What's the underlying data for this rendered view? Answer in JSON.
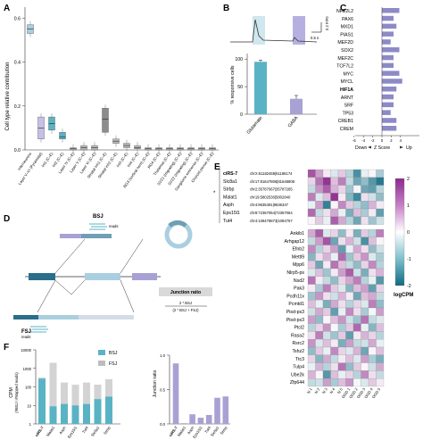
{
  "panels": {
    "a": "A",
    "b": "B",
    "c": "C",
    "d": "D",
    "e": "E",
    "f": "F"
  },
  "colors": {
    "teal": "#5ab3c4",
    "purple": "#a8a1d4",
    "grey": "#9b9b9b",
    "lightblue": "#a9cfe0",
    "heat_high": "#8d2a8c",
    "heat_low": "#0e6b83"
  },
  "panelA": {
    "ylabel": "Cell type relative contribution",
    "yticks": [
      "0.0",
      "0.2",
      "0.4",
      "0.6"
    ],
    "categories": [
      "Interneurons",
      "Layer V–VI (Pyramidal)",
      "Int1 (C–E)",
      "Int2 (C–E)",
      "Layer IV (C–E)",
      "Layer V (C–E)",
      "Layer VI (C–E)",
      "Striatal inh1 (C–E)",
      "Striatal inh2 (C–E)",
      "Int3 (C–E)",
      "Int4 (C–E)",
      "RG3 (cortical hem) (C–E)",
      "RG4 (C–E)",
      "Thalamus (C–E)",
      "SVZ1 (migrating) (C–E)",
      "SVZ2 (migrating) (C–E)",
      "Ganglionic eminence (C–E)",
      "Choroid plexus (C–E)"
    ]
  },
  "panelB": {
    "scale_label": "0.5 s",
    "scale_y": "0.2 F/F0",
    "ylabel": "% responsive cells",
    "yticks": [
      "0",
      "50",
      "100"
    ],
    "categories": [
      "Glutamate",
      "GABA"
    ]
  },
  "panelC": {
    "genes": [
      "NFE2L2",
      "PAX6",
      "MXD1",
      "PIAS1",
      "MEF2D",
      "SOX2",
      "MEF2C",
      "TCF7L2",
      "MYC",
      "MYCL",
      "HIF1A",
      "ARNT",
      "SRF",
      "TP53",
      "CREB1",
      "CREM"
    ],
    "bold_gene": "HIF1A",
    "xticks": [
      "-6",
      "-4",
      "-2",
      "0",
      "2",
      "4"
    ],
    "xlabel_down": "Down",
    "xlabel_mid": "Z Score",
    "xlabel_up": "Up"
  },
  "panelD": {
    "bsj_label": "BSJ",
    "bsj_reads": "reads",
    "fsj_label": "FSJ",
    "fsj_reads": "reads",
    "jr_title": "Junction ratio",
    "jr_num": "2 * BSJ",
    "jr_den": "(2 * BSJ + FSJ)"
  },
  "panelE": {
    "top_rows": [
      "ciRS-7",
      "Slc8a1",
      "Strbp",
      "Malat1",
      "Asph",
      "Eps15l1",
      "Tut4"
    ],
    "top_coords": [
      "chrX:61182469|61186174",
      "chr17:81647806|81648808",
      "chr2:35787067|35787285",
      "chr19:5802530|5802840",
      "chr4:9635491|9636347",
      "chr8:72367054|72367064",
      "chr4:108478873|1084757"
    ],
    "bottom_rows": [
      "Ankib1",
      "Arhgap12",
      "Efnb2",
      "Mettl9",
      "Mpp6",
      "Nlrp5-ps",
      "Nsd2",
      "Pak3",
      "Pcdh11x",
      "Pcmtd1",
      "Pisd-ps3",
      "Pisd-ps3",
      "Ptcl2",
      "Rasa2",
      "Rsrc2",
      "Tshz2",
      "Ttc3",
      "Tulp4",
      "Ube2k",
      "Zfp644"
    ],
    "columns": [
      "N 1",
      "N 2",
      "N 3",
      "N 4",
      "N 5",
      "OGD 1",
      "OGD 2",
      "OGD 3",
      "OGD 4",
      "OGD 5"
    ],
    "star": "*",
    "legend_title": "logCPM",
    "legend_ticks": [
      "2",
      "1",
      "0",
      "-1",
      "-2"
    ]
  },
  "panelF": {
    "legend": [
      "BSJ",
      "FSJ"
    ],
    "ylabel_main": "CPM",
    "ylabel_sub": "(#BSJ / #Mapped reads)",
    "yticks": [
      "1",
      "10",
      "100",
      "1000",
      "10000"
    ],
    "categories": [
      "ciRS-7",
      "Malat1",
      "Asph",
      "Eps15l1",
      "Tut4",
      "Slc8a1",
      "Strbp"
    ],
    "ylabel2": "Junction ratio",
    "yticks2": [
      "0.0",
      "0.5",
      "1.0"
    ]
  },
  "chart_data": [
    {
      "type": "box",
      "categories": [
        "Interneurons",
        "Layer V–VI (Pyramidal)",
        "Int1",
        "Int2",
        "Layer IV",
        "Layer V",
        "Layer VI",
        "Striatal inh1",
        "Striatal inh2",
        "Int3",
        "Int4",
        "RG3",
        "RG4",
        "Thalamus",
        "SVZ1",
        "SVZ2",
        "Ganglionic eminence",
        "Choroid plexus"
      ],
      "median": [
        0.55,
        0.1,
        0.12,
        0.06,
        0.005,
        0.01,
        0.01,
        0.14,
        0.04,
        0.02,
        0.01,
        0.005,
        0.005,
        0.005,
        0.005,
        0.005,
        0.005,
        0.005
      ],
      "q1": [
        0.53,
        0.05,
        0.09,
        0.05,
        0.0,
        0.0,
        0.0,
        0.08,
        0.03,
        0.01,
        0.005,
        0.0,
        0.0,
        0.0,
        0.0,
        0.0,
        0.0,
        0.0
      ],
      "q3": [
        0.57,
        0.15,
        0.15,
        0.08,
        0.01,
        0.02,
        0.02,
        0.19,
        0.05,
        0.03,
        0.02,
        0.01,
        0.01,
        0.01,
        0.01,
        0.01,
        0.01,
        0.01
      ],
      "ylim": [
        0,
        0.65
      ]
    },
    {
      "type": "bar",
      "categories": [
        "Glutamate",
        "GABA"
      ],
      "values": [
        95,
        28
      ],
      "errors": [
        3,
        6
      ],
      "ylim": [
        0,
        110
      ]
    },
    {
      "type": "bar",
      "orientation": "horizontal",
      "categories": [
        "NFE2L2",
        "PAX6",
        "MXD1",
        "PIAS1",
        "MEF2D",
        "SOX2",
        "MEF2C",
        "TCF7L2",
        "MYC",
        "MYCL",
        "HIF1A",
        "ARNT",
        "SRF",
        "TP53",
        "CREB1",
        "CREM"
      ],
      "values": [
        3.0,
        2.0,
        2.5,
        2.0,
        1.5,
        3.0,
        2.0,
        2.0,
        3.0,
        3.5,
        2.5,
        2.0,
        2.0,
        1.5,
        2.5,
        2.5
      ],
      "xlim": [
        -6,
        4
      ]
    },
    {
      "type": "bar",
      "stacked": true,
      "log_y": true,
      "categories": [
        "ciRS-7",
        "Malat1",
        "Asph",
        "Eps15l1",
        "Tut4",
        "Slc8a1",
        "Strbp"
      ],
      "series": [
        {
          "name": "BSJ",
          "values": [
            280,
            9,
            12,
            10,
            12,
            22,
            30
          ]
        },
        {
          "name": "FSJ",
          "values": [
            40,
            2000,
            160,
            120,
            160,
            110,
            230
          ]
        }
      ],
      "ylim": [
        1,
        10000
      ]
    },
    {
      "type": "bar",
      "categories": [
        "ciRS-7",
        "Malat1",
        "Asph",
        "Eps15l1",
        "Tut4",
        "Slc8a1",
        "Strbp"
      ],
      "values": [
        0.88,
        0.01,
        0.14,
        0.09,
        0.13,
        0.38,
        0.4
      ],
      "ylim": [
        0,
        1.0
      ]
    },
    {
      "type": "heatmap",
      "rows": [
        "ciRS-7",
        "Slc8a1",
        "Strbp",
        "Malat1",
        "Asph",
        "Eps15l1",
        "Tut4"
      ],
      "columns": [
        "N 1",
        "N 2",
        "N 3",
        "N 4",
        "N 5",
        "OGD 1",
        "OGD 2",
        "OGD 3",
        "OGD 4",
        "OGD 5"
      ],
      "values": [
        [
          1.6,
          0.9,
          0.2,
          -0.3,
          0.5,
          -0.6,
          -1.5,
          -0.2,
          0.1,
          -0.7
        ],
        [
          0.4,
          1.3,
          1.9,
          0.6,
          1.2,
          -0.5,
          -1.2,
          -0.9,
          -1.4,
          -1.8
        ],
        [
          -0.5,
          1.0,
          1.5,
          0.7,
          0.4,
          -0.8,
          0.1,
          -1.2,
          -1.3,
          -0.6
        ],
        [
          1.2,
          -0.3,
          0.6,
          1.9,
          0.2,
          -1.0,
          -1.6,
          0.3,
          -0.4,
          -0.9
        ],
        [
          -0.2,
          0.9,
          -1.7,
          0.1,
          1.1,
          0.5,
          -0.6,
          -0.9,
          0.7,
          0.2
        ],
        [
          1.4,
          -0.5,
          0.3,
          0.8,
          -0.2,
          -1.1,
          0.6,
          -0.7,
          0.2,
          -1.3
        ],
        [
          0.1,
          0.5,
          -0.2,
          1.5,
          0.8,
          -0.6,
          -1.2,
          0.3,
          -0.8,
          -0.4
        ]
      ],
      "zlim": [
        -2,
        2
      ]
    },
    {
      "type": "heatmap",
      "rows": [
        "Ankib1",
        "Arhgap12",
        "Efnb2",
        "Mettl9",
        "Mpp6",
        "Nlrp5-ps",
        "Nsd2",
        "Pak3",
        "Pcdh11x",
        "Pcmtd1",
        "Pisd-ps3",
        "Pisd-ps3",
        "Ptcl2",
        "Rasa2",
        "Rsrc2",
        "Tshz2",
        "Ttc3",
        "Tulp4",
        "Ube2k",
        "Zfp644"
      ],
      "columns": [
        "N 1",
        "N 2",
        "N 3",
        "N 4",
        "N 5",
        "OGD 1",
        "OGD 2",
        "OGD 3",
        "OGD 4",
        "OGD 5"
      ],
      "values": [
        [
          0.8,
          1.5,
          -0.3,
          0.4,
          -0.9,
          0.2,
          -1.1,
          0.5,
          -0.6,
          1.2
        ],
        [
          -0.5,
          0.9,
          1.6,
          -1.2,
          0.3,
          0.7,
          -0.4,
          -1.5,
          0.6,
          0.1
        ],
        [
          1.1,
          -0.6,
          0.4,
          0.9,
          -1.3,
          -0.2,
          0.8,
          0.3,
          -0.9,
          -0.4
        ],
        [
          -1.0,
          0.3,
          0.7,
          -0.2,
          1.4,
          -0.8,
          0.5,
          1.0,
          -0.3,
          -0.7
        ],
        [
          0.5,
          -1.2,
          0.2,
          1.3,
          0.6,
          -0.5,
          -0.9,
          0.4,
          1.1,
          -0.6
        ],
        [
          -0.3,
          0.6,
          -0.8,
          0.2,
          0.9,
          1.5,
          -0.4,
          -1.1,
          0.3,
          0.7
        ],
        [
          1.3,
          0.2,
          -0.5,
          -0.9,
          0.4,
          0.8,
          1.2,
          -0.6,
          -0.2,
          -1.4
        ],
        [
          0.2,
          -0.7,
          1.2,
          0.5,
          -0.3,
          -1.0,
          0.6,
          0.9,
          -1.3,
          0.4
        ],
        [
          -0.8,
          1.0,
          0.3,
          -0.4,
          0.7,
          0.2,
          -1.2,
          0.6,
          0.8,
          -0.5
        ],
        [
          0.6,
          -0.2,
          -1.1,
          0.8,
          0.3,
          -0.6,
          0.4,
          -0.3,
          1.2,
          -0.9
        ],
        [
          -0.4,
          0.8,
          0.5,
          -1.3,
          -0.2,
          1.1,
          0.3,
          -0.7,
          -0.1,
          0.9
        ],
        [
          0.9,
          -0.9,
          0.1,
          0.6,
          1.0,
          -0.4,
          -0.8,
          1.3,
          -0.5,
          -0.3
        ],
        [
          -0.6,
          0.4,
          1.0,
          -0.1,
          -0.7,
          0.5,
          1.4,
          -0.2,
          -1.0,
          0.6
        ],
        [
          0.3,
          1.2,
          -0.4,
          -0.8,
          0.5,
          -1.3,
          0.2,
          0.7,
          0.4,
          -0.6
        ],
        [
          1.0,
          -0.3,
          0.6,
          0.2,
          -1.1,
          0.9,
          -0.5,
          -0.4,
          0.8,
          -0.2
        ],
        [
          -0.9,
          0.5,
          -0.2,
          1.1,
          0.4,
          -0.3,
          0.7,
          -1.2,
          0.1,
          0.6
        ],
        [
          0.4,
          -1.0,
          0.8,
          -0.5,
          0.2,
          0.6,
          -0.3,
          0.9,
          -0.7,
          -1.1
        ],
        [
          -0.2,
          0.7,
          -0.6,
          0.3,
          1.3,
          -0.9,
          0.5,
          0.1,
          -0.4,
          0.8
        ],
        [
          0.7,
          0.1,
          -1.4,
          0.6,
          -0.2,
          0.4,
          -0.6,
          1.1,
          0.3,
          -0.5
        ],
        [
          -0.5,
          -0.4,
          0.9,
          -0.7,
          0.6,
          1.0,
          -0.1,
          -0.3,
          0.5,
          0.2
        ]
      ],
      "zlim": [
        -2,
        2
      ]
    }
  ]
}
